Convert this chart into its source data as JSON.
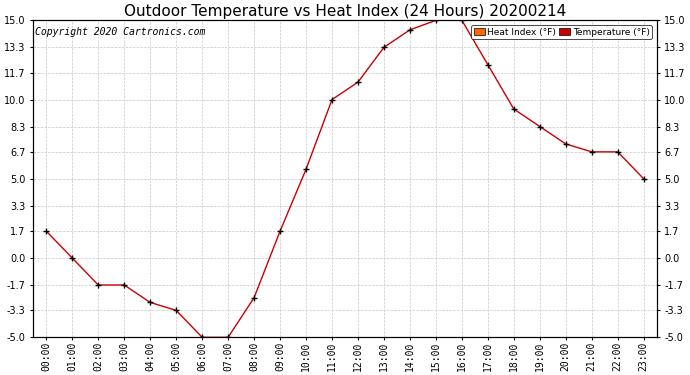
{
  "title": "Outdoor Temperature vs Heat Index (24 Hours) 20200214",
  "copyright": "Copyright 2020 Cartronics.com",
  "hours": [
    "00:00",
    "01:00",
    "02:00",
    "03:00",
    "04:00",
    "05:00",
    "06:00",
    "07:00",
    "08:00",
    "09:00",
    "10:00",
    "11:00",
    "12:00",
    "13:00",
    "14:00",
    "15:00",
    "16:00",
    "17:00",
    "18:00",
    "19:00",
    "20:00",
    "21:00",
    "22:00",
    "23:00"
  ],
  "temperature": [
    1.7,
    0.0,
    -1.7,
    -1.7,
    -2.8,
    -3.3,
    -5.0,
    -5.0,
    -2.5,
    1.7,
    5.6,
    10.0,
    11.1,
    13.3,
    14.4,
    15.0,
    15.0,
    12.2,
    9.4,
    8.3,
    7.2,
    6.7,
    6.7,
    5.0
  ],
  "ylim": [
    -5.0,
    15.0
  ],
  "yticks": [
    -5.0,
    -3.3,
    -1.7,
    0.0,
    1.7,
    3.3,
    5.0,
    6.7,
    8.3,
    10.0,
    11.7,
    13.3,
    15.0
  ],
  "temp_color": "#cc0000",
  "background_color": "#ffffff",
  "grid_color": "#c8c8c8",
  "legend_heat_bg": "#ff6600",
  "legend_temp_bg": "#cc0000",
  "title_fontsize": 11,
  "copyright_fontsize": 7,
  "tick_fontsize": 7,
  "legend_heat_label": "Heat Index (°F)",
  "legend_temp_label": "Temperature (°F)"
}
